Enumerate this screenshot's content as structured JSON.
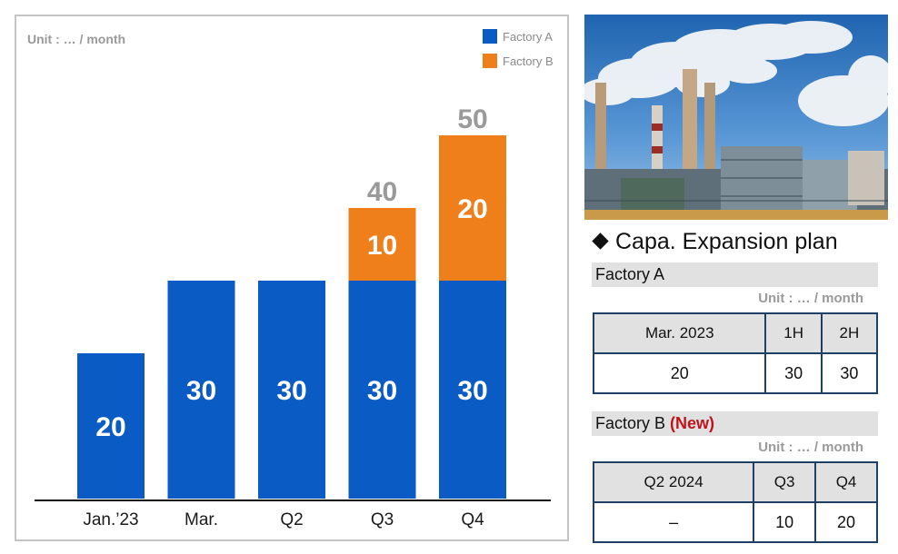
{
  "chart_data": {
    "type": "bar",
    "stacked": true,
    "unit_label": "Unit : … / month",
    "categories": [
      "Jan.’23",
      "Mar.",
      "Q2",
      "Q3",
      "Q4"
    ],
    "series": [
      {
        "name": "Factory A",
        "color": "#0a5bc4",
        "values": [
          20,
          30,
          30,
          30,
          30
        ]
      },
      {
        "name": "Factory B",
        "color": "#ef7f1a",
        "values": [
          0,
          0,
          0,
          10,
          20
        ]
      }
    ],
    "totals": [
      null,
      null,
      null,
      40,
      50
    ],
    "ylim": [
      0,
      50
    ],
    "legend_position": "top-right",
    "grid": false
  },
  "plan": {
    "title": "Capa. Expansion plan",
    "unit": "Unit : … / month",
    "factory_a": {
      "label": "Factory A",
      "headers": [
        "Mar. 2023",
        "1H",
        "2H"
      ],
      "values": [
        "20",
        "30",
        "30"
      ]
    },
    "factory_b": {
      "label": "Factory B",
      "new_tag": "(New)",
      "headers": [
        "Q2 2024",
        "Q3",
        "Q4"
      ],
      "values": [
        "–",
        "10",
        "20"
      ]
    }
  }
}
